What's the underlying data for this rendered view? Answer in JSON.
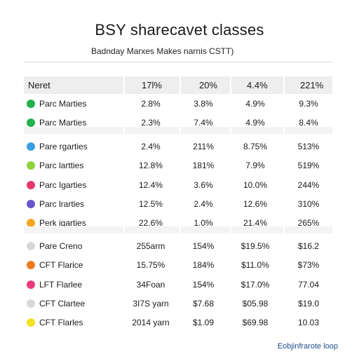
{
  "title": "BSY sharecavet classes",
  "subtitle": "Badnday Marxes Makes narnis CSTT)",
  "header": [
    "Neret",
    "17l%",
    "20%",
    "4.4%",
    "221%"
  ],
  "groups": [
    {
      "rows": [
        {
          "color": "#22b14c",
          "label": "Parc Marties",
          "values": [
            "2.8%",
            "3.8%",
            "4.9%",
            "9.3%"
          ]
        },
        {
          "color": "#22b14c",
          "label": "Parc Marties",
          "values": [
            "2.3%",
            "7.4%",
            "4.9%",
            "8.4%"
          ]
        }
      ]
    },
    {
      "rows": [
        {
          "color": "#3a9fe0",
          "label": "Pare rgarties",
          "values": [
            "2.4%",
            "211%",
            "8.75%",
            "513%"
          ]
        },
        {
          "color": "#8ed43a",
          "label": "Parc lartties",
          "values": [
            "12.8%",
            "181%",
            "7.9%",
            "519%"
          ]
        },
        {
          "color": "#e8386c",
          "label": "Parc Igarties",
          "values": [
            "12.4%",
            "3.6%",
            "10.0%",
            "244%"
          ]
        },
        {
          "color": "#6a55c8",
          "label": "Parc lrarties",
          "values": [
            "12.5%",
            "2.4%",
            "12.6%",
            "310%"
          ]
        },
        {
          "color": "#f5a623",
          "label": "Perk igarties",
          "values": [
            "22.6%",
            "1.0%",
            "21.4%",
            "265%"
          ]
        }
      ]
    },
    {
      "rows": [
        {
          "color": "#d8d8d8",
          "label": "Pare Creno",
          "values": [
            "255arm",
            "154%",
            "$19.5%",
            "$16.2"
          ]
        },
        {
          "color": "#f07b1f",
          "label": "CFT Flarice",
          "values": [
            "15.75%",
            "184%",
            "$11.0%",
            "$73%"
          ]
        },
        {
          "color": "#ec3a7c",
          "label": "LFT Flarlee",
          "values": [
            "34Foan",
            "154%",
            "$17.0%",
            "77.04"
          ]
        },
        {
          "color": "#d8d8d8",
          "label": "CFT Clartee",
          "values": [
            "3I7S yarn",
            "$7.68",
            "$05.98",
            "$19.0"
          ]
        },
        {
          "color": "#f2e21f",
          "label": "CFT Flarles",
          "values": [
            "2014 yarn",
            "$1.09",
            "$69.98",
            "10.03"
          ]
        }
      ]
    }
  ],
  "footer": "Eobjinfrarote loop"
}
